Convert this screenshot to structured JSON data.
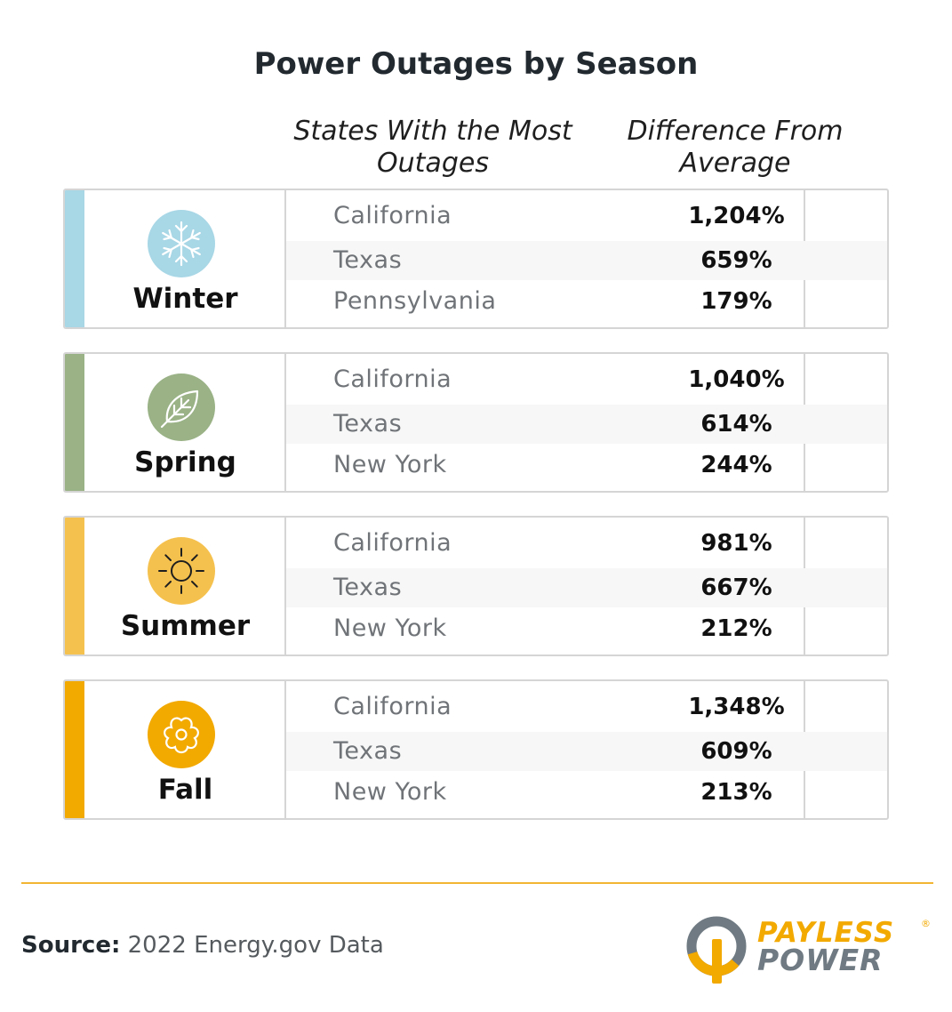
{
  "title": "Power Outages by Season",
  "columns": {
    "states": "States With the Most Outages",
    "difference": "Difference From Average"
  },
  "seasons": [
    {
      "name": "Winter",
      "icon": "snowflake-icon",
      "color": "#a8d7e6",
      "rows": [
        {
          "state": "California",
          "value": "1,204%"
        },
        {
          "state": "Texas",
          "value": "659%"
        },
        {
          "state": "Pennsylvania",
          "value": "179%"
        }
      ]
    },
    {
      "name": "Spring",
      "icon": "leaf-icon",
      "color": "#9ab286",
      "rows": [
        {
          "state": "California",
          "value": "1,040%"
        },
        {
          "state": "Texas",
          "value": "614%"
        },
        {
          "state": "New York",
          "value": "244%"
        }
      ]
    },
    {
      "name": "Summer",
      "icon": "sun-icon",
      "color": "#f5c14e",
      "rows": [
        {
          "state": "California",
          "value": "981%"
        },
        {
          "state": "Texas",
          "value": "667%"
        },
        {
          "state": "New York",
          "value": "212%"
        }
      ]
    },
    {
      "name": "Fall",
      "icon": "flower-icon",
      "color": "#f2a900",
      "rows": [
        {
          "state": "California",
          "value": "1,348%"
        },
        {
          "state": "Texas",
          "value": "609%"
        },
        {
          "state": "New York",
          "value": "213%"
        }
      ]
    }
  ],
  "source": {
    "label": "Source:",
    "text": "2022 Energy.gov Data"
  },
  "logo": {
    "line1": "PAYLESS",
    "line2": "POWER",
    "reg": "®",
    "brand_orange": "#f2a900",
    "brand_gray": "#6f7a82"
  }
}
